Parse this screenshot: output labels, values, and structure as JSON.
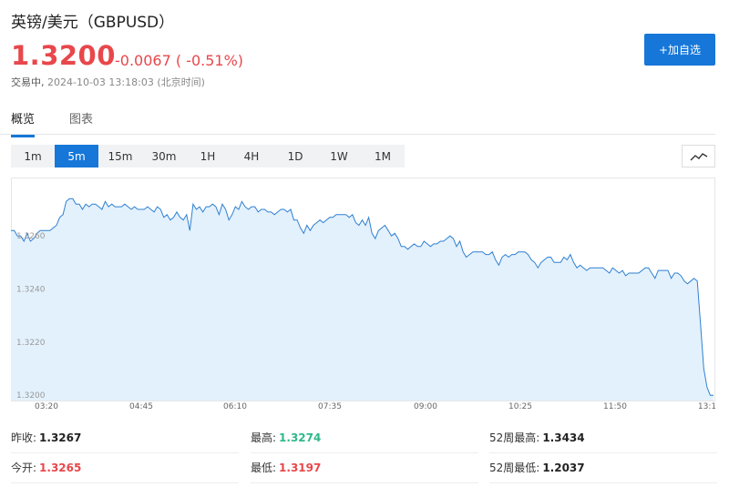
{
  "header": {
    "title": "英镑/美元（GBPUSD）",
    "price": "1.3200",
    "change": "-0.0067 ( -0.51%)",
    "status_label": "交易中,",
    "timestamp": "2024-10-03 13:18:03 (北京时间)",
    "add_watchlist_label": "+加自选"
  },
  "tabs": {
    "overview": "概览",
    "chart": "图表"
  },
  "ranges": [
    "1m",
    "5m",
    "15m",
    "30m",
    "1H",
    "4H",
    "1D",
    "1W",
    "1M"
  ],
  "active_range": "5m",
  "stats": {
    "prev_close": {
      "label": "昨收:",
      "value": "1.3267"
    },
    "high": {
      "label": "最高:",
      "value": "1.3274"
    },
    "high_52w": {
      "label": "52周最高:",
      "value": "1.3434"
    },
    "open": {
      "label": "今开:",
      "value": "1.3265"
    },
    "low": {
      "label": "最低:",
      "value": "1.3197"
    },
    "low_52w": {
      "label": "52周最低:",
      "value": "1.2037"
    }
  },
  "colors": {
    "accent": "#1677d9",
    "down": "#e8474b",
    "up": "#2fb889",
    "area_fill": "#e3f1fc",
    "line": "#2f80d1"
  },
  "chart_data": {
    "type": "area",
    "ylim": [
      1.3198,
      1.3282
    ],
    "y_ticks": [
      "1.3260",
      "1.3240",
      "1.3220",
      "1.3200"
    ],
    "x_ticks": [
      "03:20",
      "04:45",
      "06:10",
      "07:35",
      "09:00",
      "10:25",
      "11:50",
      "13:1"
    ],
    "values": [
      1.3262,
      1.3262,
      1.326,
      1.326,
      1.3258,
      1.3261,
      1.3258,
      1.3259,
      1.3261,
      1.3262,
      1.3262,
      1.3262,
      1.3262,
      1.3263,
      1.3264,
      1.3267,
      1.3268,
      1.3273,
      1.3274,
      1.3274,
      1.3272,
      1.3272,
      1.327,
      1.3272,
      1.3271,
      1.3272,
      1.3272,
      1.3271,
      1.327,
      1.3273,
      1.3271,
      1.3272,
      1.3271,
      1.3271,
      1.3271,
      1.3272,
      1.3271,
      1.327,
      1.3271,
      1.327,
      1.327,
      1.327,
      1.3271,
      1.327,
      1.3269,
      1.3271,
      1.327,
      1.3267,
      1.3268,
      1.3266,
      1.3267,
      1.3269,
      1.3267,
      1.3266,
      1.3268,
      1.3262,
      1.3272,
      1.327,
      1.3271,
      1.3269,
      1.3271,
      1.3271,
      1.3272,
      1.3271,
      1.3268,
      1.3272,
      1.327,
      1.3266,
      1.3268,
      1.3271,
      1.327,
      1.3273,
      1.3271,
      1.327,
      1.3271,
      1.3271,
      1.3269,
      1.327,
      1.327,
      1.3269,
      1.3269,
      1.3268,
      1.3269,
      1.327,
      1.327,
      1.3269,
      1.327,
      1.3266,
      1.3266,
      1.3263,
      1.3261,
      1.3264,
      1.3262,
      1.3264,
      1.3265,
      1.3266,
      1.3265,
      1.3266,
      1.3267,
      1.3267,
      1.3268,
      1.3268,
      1.3268,
      1.3268,
      1.3267,
      1.3268,
      1.3265,
      1.3264,
      1.3266,
      1.3264,
      1.3267,
      1.3261,
      1.3259,
      1.3262,
      1.3263,
      1.3264,
      1.3262,
      1.326,
      1.3261,
      1.3259,
      1.3256,
      1.3256,
      1.3255,
      1.3256,
      1.3257,
      1.3256,
      1.3256,
      1.3258,
      1.3257,
      1.3256,
      1.3257,
      1.3257,
      1.3258,
      1.3258,
      1.3259,
      1.326,
      1.3259,
      1.3256,
      1.3258,
      1.3254,
      1.3252,
      1.3253,
      1.3254,
      1.3254,
      1.3254,
      1.3254,
      1.3253,
      1.3253,
      1.3254,
      1.3251,
      1.3249,
      1.3252,
      1.3253,
      1.3252,
      1.3253,
      1.3253,
      1.3254,
      1.3254,
      1.3254,
      1.3253,
      1.3251,
      1.325,
      1.3248,
      1.325,
      1.3251,
      1.3252,
      1.3252,
      1.325,
      1.325,
      1.325,
      1.3252,
      1.3251,
      1.3253,
      1.325,
      1.3248,
      1.3249,
      1.3248,
      1.3247,
      1.3248,
      1.3248,
      1.3248,
      1.3248,
      1.3248,
      1.3247,
      1.3246,
      1.3248,
      1.3247,
      1.3246,
      1.3247,
      1.3245,
      1.3246,
      1.3246,
      1.3246,
      1.3246,
      1.3247,
      1.3248,
      1.3248,
      1.3246,
      1.3244,
      1.3247,
      1.3247,
      1.3247,
      1.3247,
      1.3244,
      1.3246,
      1.3246,
      1.3245,
      1.3243,
      1.3242,
      1.3243,
      1.3244,
      1.3243,
      1.3227,
      1.321,
      1.3203,
      1.32,
      1.32
    ]
  }
}
